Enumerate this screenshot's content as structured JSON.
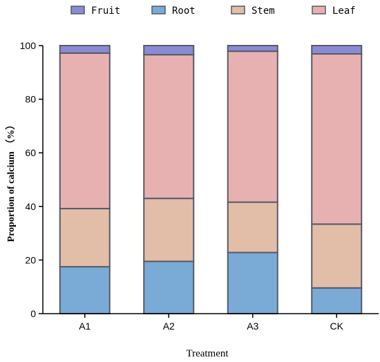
{
  "chart_data": {
    "type": "bar",
    "stacked": true,
    "categories": [
      "A1",
      "A2",
      "A3",
      "CK"
    ],
    "series": [
      {
        "name": "Root",
        "values": [
          17.5,
          19.5,
          22.8,
          9.6
        ]
      },
      {
        "name": "Stem",
        "values": [
          21.7,
          23.5,
          18.8,
          23.8
        ]
      },
      {
        "name": "Leaf",
        "values": [
          58.0,
          53.6,
          56.3,
          63.5
        ]
      },
      {
        "name": "Fruit",
        "values": [
          2.8,
          3.4,
          2.1,
          3.1
        ]
      }
    ],
    "legend_order": [
      "Fruit",
      "Root",
      "Stem",
      "Leaf"
    ],
    "colors": {
      "Fruit": "#8b8bd3",
      "Root": "#7aaad6",
      "Stem": "#e2bda8",
      "Leaf": "#e8b1b1"
    },
    "title": "",
    "xlabel": "Treatment",
    "ylabel": "Proportion  of calcium （%）",
    "ylim": [
      0,
      100
    ],
    "yticks": [
      0,
      20,
      40,
      60,
      80,
      100
    ],
    "grid": false,
    "legend_position": "top"
  }
}
